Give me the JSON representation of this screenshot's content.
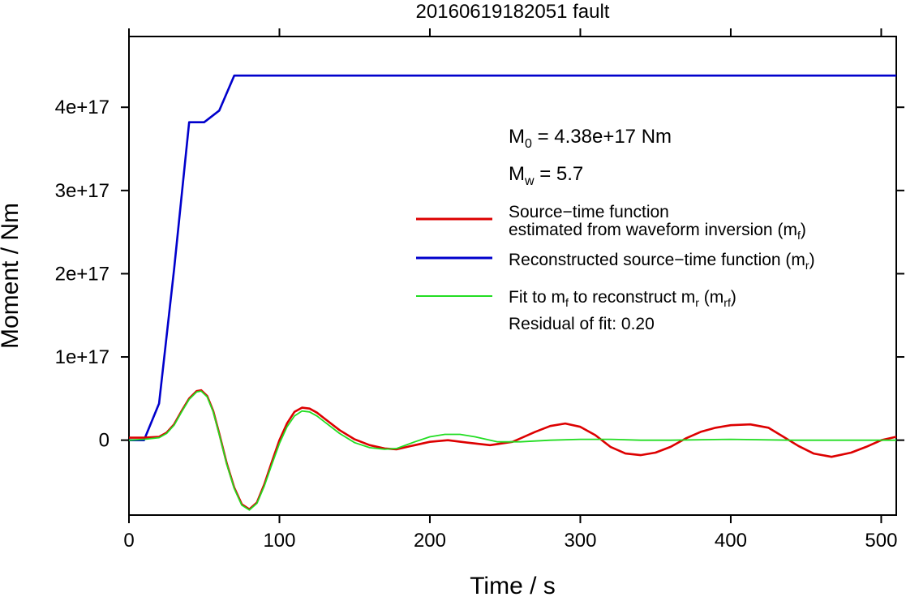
{
  "chart_data": {
    "type": "line",
    "title": "20160619182051 fault",
    "xlabel": "Time / s",
    "ylabel": "Moment / Nm",
    "xlim": [
      0,
      510
    ],
    "ylim": [
      -9e+16,
      4.85e+17
    ],
    "xticks": [
      0,
      100,
      200,
      300,
      400,
      500
    ],
    "xtick_labels": [
      "0",
      "100",
      "200",
      "300",
      "400",
      "500"
    ],
    "yticks": [
      0,
      1e+17,
      2e+17,
      3e+17,
      4e+17
    ],
    "ytick_labels": [
      "0",
      "1e+17",
      "2e+17",
      "3e+17",
      "4e+17"
    ],
    "grid": false,
    "legend_position": "right",
    "annotations": {
      "m0_sym": "M",
      "m0_sub": "0",
      "m0_rest": " = 4.38e+17 Nm",
      "mw_sym": "M",
      "mw_sub": "w",
      "mw_rest": " = 5.7",
      "residual": "Residual of fit: 0.20"
    },
    "series": [
      {
        "name": "Source−time function estimated from waveform inversion (m_f)",
        "color": "#dd0000",
        "legend_line1": "Source−time function",
        "legend_line2": "estimated from waveform inversion (m",
        "legend_sub": "f",
        "legend_tail": ")",
        "x": [
          0,
          10,
          20,
          25,
          30,
          35,
          40,
          45,
          48,
          52,
          56,
          60,
          65,
          70,
          75,
          80,
          85,
          90,
          95,
          100,
          105,
          110,
          115,
          120,
          125,
          130,
          140,
          150,
          160,
          170,
          178,
          190,
          200,
          212,
          225,
          240,
          255,
          270,
          280,
          290,
          300,
          310,
          320,
          330,
          340,
          350,
          360,
          370,
          380,
          390,
          400,
          413,
          425,
          435,
          445,
          455,
          467,
          480,
          490,
          500,
          510
        ],
        "y": [
          3000000000000000.0,
          3000000000000000.0,
          4000000000000000.0,
          9000000000000000.0,
          1.9e+16,
          3.5e+16,
          5e+16,
          5.9e+16,
          6e+16,
          5.3e+16,
          3.5e+16,
          8000000000000000.0,
          -2.8e+16,
          -5.7e+16,
          -7.7e+16,
          -8.3e+16,
          -7.5e+16,
          -5.3e+16,
          -2.6e+16,
          0.0,
          2e+16,
          3.4e+16,
          3.9e+16,
          3.8e+16,
          3.3e+16,
          2.6e+16,
          1.2e+16,
          1000000000000000.0,
          -6000000000000000.0,
          -1e+16,
          -1.1e+16,
          -6000000000000000.0,
          -2000000000000000.0,
          0.0,
          -3000000000000000.0,
          -6000000000000000.0,
          -2000000000000000.0,
          1e+16,
          1.7e+16,
          2e+16,
          1.6e+16,
          6000000000000000.0,
          -8000000000000000.0,
          -1.6e+16,
          -1.8e+16,
          -1.5e+16,
          -8000000000000000.0,
          2000000000000000.0,
          1e+16,
          1.5e+16,
          1.8e+16,
          1.9e+16,
          1.5e+16,
          4000000000000000.0,
          -7000000000000000.0,
          -1.6e+16,
          -2e+16,
          -1.5e+16,
          -8000000000000000.0,
          0.0,
          4000000000000000.0
        ]
      },
      {
        "name": "Reconstructed source−time function (m_r)",
        "color": "#0000cc",
        "legend_line1": "Reconstructed source−time function (m",
        "legend_sub": "r",
        "legend_tail": ")",
        "x": [
          0,
          10,
          20,
          30,
          40,
          50,
          60,
          70,
          510
        ],
        "y": [
          0,
          0,
          4.4e+16,
          2.05e+17,
          3.82e+17,
          3.82e+17,
          3.96e+17,
          4.38e+17,
          4.38e+17
        ]
      },
      {
        "name": "Fit to m_f to reconstruct m_r (m_rf)",
        "color": "#22dd22",
        "legend_line1": "Fit to m",
        "legend_sub_a": "f",
        "legend_mid": " to reconstruct m",
        "legend_sub_b": "r",
        "legend_mid2": " (m",
        "legend_sub_c": "rf",
        "legend_tail": ")",
        "x": [
          0,
          10,
          20,
          25,
          30,
          35,
          40,
          45,
          48,
          52,
          56,
          60,
          65,
          70,
          75,
          80,
          85,
          90,
          95,
          100,
          105,
          110,
          115,
          120,
          125,
          130,
          140,
          150,
          160,
          170,
          178,
          190,
          200,
          210,
          220,
          230,
          245,
          260,
          280,
          300,
          320,
          340,
          360,
          400,
          440,
          480,
          510
        ],
        "y": [
          0.0,
          1000000000000000.0,
          3000000000000000.0,
          8000000000000000.0,
          1.8e+16,
          3.4e+16,
          4.9e+16,
          5.8e+16,
          5.9e+16,
          5.2e+16,
          3.4e+16,
          7000000000000000.0,
          -2.9e+16,
          -5.8e+16,
          -7.8e+16,
          -8.4e+16,
          -7.6e+16,
          -5.5e+16,
          -2.9e+16,
          -4000000000000000.0,
          1.6e+16,
          2.9e+16,
          3.5e+16,
          3.4e+16,
          2.9e+16,
          2.2e+16,
          8000000000000000.0,
          -3000000000000000.0,
          -9000000000000000.0,
          -1.1e+16,
          -1e+16,
          -2000000000000000.0,
          4000000000000000.0,
          7000000000000000.0,
          7000000000000000.0,
          4000000000000000.0,
          -2000000000000000.0,
          -2000000000000000.0,
          0.0,
          1000000000000000.0,
          1000000000000000.0,
          0.0,
          0.0,
          1000000000000000.0,
          0.0,
          0.0,
          0.0
        ]
      }
    ]
  }
}
